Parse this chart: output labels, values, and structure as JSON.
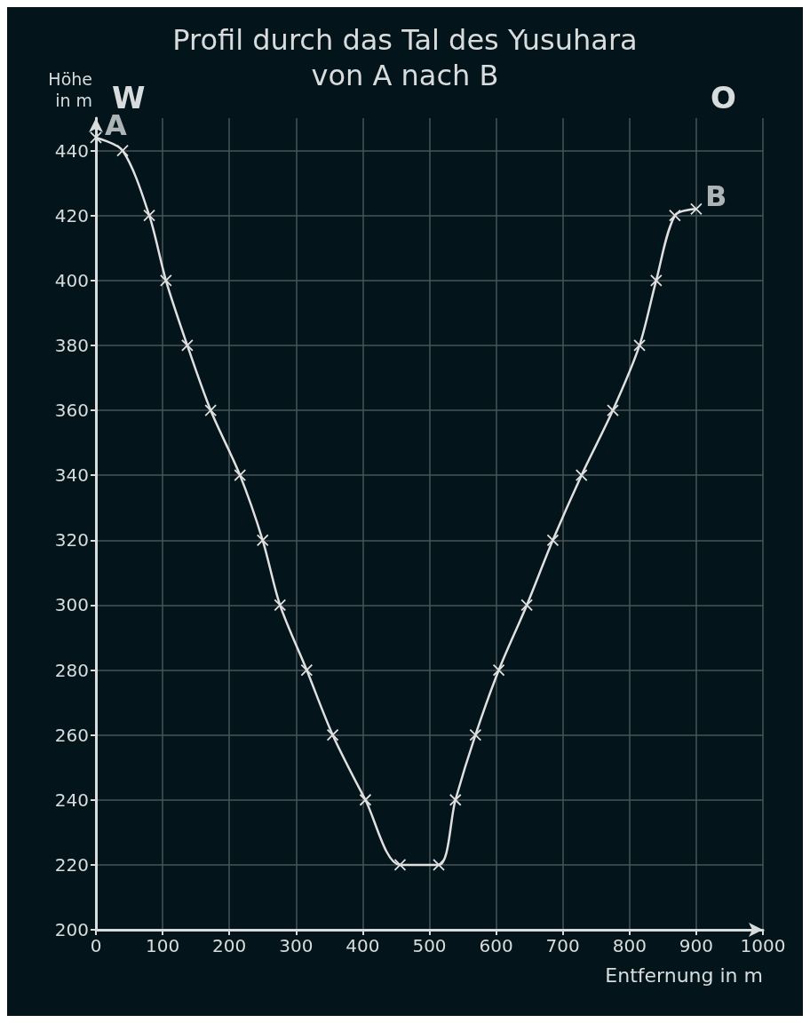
{
  "chart_data": {
    "type": "line",
    "title": "Profil durch das Tal des Yusuhara\nvon A nach B",
    "xlabel": "Entfernung in m",
    "ylabel": "Höhe\nin m",
    "x": [
      0,
      40,
      80,
      105,
      137,
      172,
      216,
      250,
      276,
      316,
      355,
      404,
      456,
      514,
      539,
      569,
      604,
      646,
      685,
      728,
      775,
      815,
      840,
      868,
      900
    ],
    "series": [
      {
        "color": "#e0e0e0",
        "values": [
          444,
          440,
          420,
          400,
          380,
          360,
          340,
          320,
          300,
          280,
          260,
          240,
          220,
          220,
          240,
          260,
          280,
          300,
          320,
          340,
          360,
          380,
          400,
          420,
          422
        ]
      }
    ],
    "xlim": [
      0,
      1000
    ],
    "xticks": [
      0,
      100,
      200,
      300,
      400,
      500,
      600,
      700,
      800,
      900,
      1000
    ],
    "ylim": [
      200,
      450
    ],
    "yticks": [
      200,
      220,
      240,
      260,
      280,
      300,
      320,
      340,
      360,
      380,
      400,
      420,
      440
    ],
    "grid": true,
    "marker": "cross",
    "line_style": "solid",
    "annotations": [
      {
        "text": "A",
        "x": 0,
        "y": 444
      },
      {
        "text": "B",
        "x": 900,
        "y": 422
      },
      "W",
      "O"
    ]
  }
}
